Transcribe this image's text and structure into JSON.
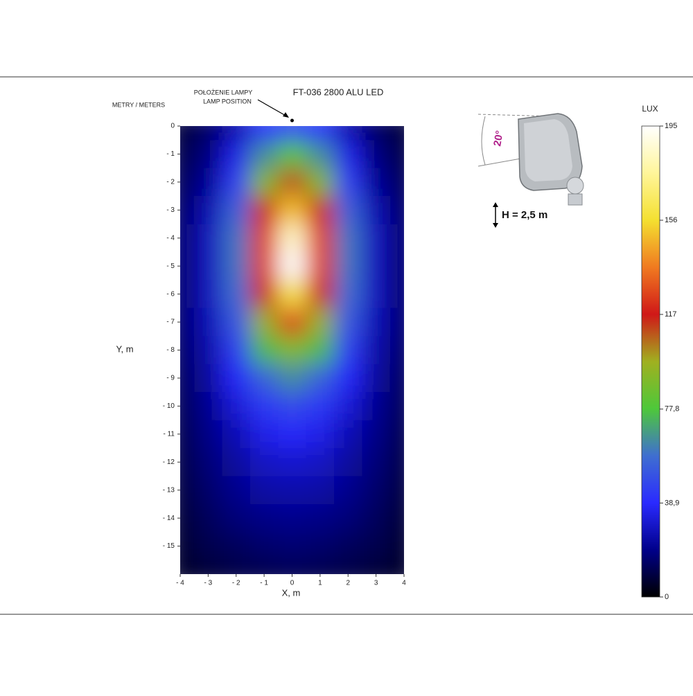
{
  "chart_data": {
    "type": "heatmap",
    "title": "FT-036 2800 ALU LED",
    "y_axis_caption": "METRY / METERS",
    "lamp_label": [
      "POŁOŻENIE LAMPY",
      "LAMP POSITION"
    ],
    "xlabel": "X, m",
    "ylabel": "Y, m",
    "colorbar_label": "LUX",
    "angle_label": "20°",
    "height_label": "H = 2,5 m",
    "lamp_position": [
      0,
      0
    ],
    "x": [
      -4,
      -3,
      -2,
      -1,
      0,
      1,
      2,
      3,
      4
    ],
    "y": [
      0,
      -1,
      -2,
      -3,
      -4,
      -5,
      -6,
      -7,
      -8,
      -9,
      -10,
      -11,
      -12,
      -13,
      -14,
      -15,
      -16
    ],
    "z": [
      [
        8,
        14,
        25,
        40,
        45,
        40,
        25,
        14,
        8
      ],
      [
        10,
        18,
        35,
        65,
        80,
        65,
        35,
        18,
        10
      ],
      [
        12,
        22,
        45,
        90,
        110,
        90,
        45,
        22,
        12
      ],
      [
        14,
        26,
        55,
        115,
        150,
        115,
        55,
        26,
        14
      ],
      [
        15,
        28,
        60,
        125,
        185,
        125,
        60,
        28,
        15
      ],
      [
        15,
        28,
        60,
        125,
        195,
        125,
        60,
        28,
        15
      ],
      [
        15,
        28,
        58,
        115,
        160,
        115,
        58,
        28,
        15
      ],
      [
        15,
        27,
        52,
        95,
        125,
        95,
        52,
        27,
        15
      ],
      [
        14,
        25,
        45,
        75,
        90,
        75,
        45,
        25,
        14
      ],
      [
        13,
        23,
        38,
        55,
        65,
        55,
        38,
        23,
        13
      ],
      [
        12,
        21,
        32,
        43,
        48,
        43,
        32,
        21,
        12
      ],
      [
        11,
        19,
        27,
        35,
        38,
        35,
        27,
        19,
        11
      ],
      [
        10,
        17,
        23,
        29,
        31,
        29,
        23,
        17,
        10
      ],
      [
        9,
        15,
        20,
        24,
        25,
        24,
        20,
        15,
        9
      ],
      [
        8,
        13,
        17,
        19,
        20,
        19,
        17,
        13,
        8
      ],
      [
        7,
        11,
        13,
        15,
        16,
        15,
        13,
        11,
        7
      ],
      [
        6,
        8,
        10,
        11,
        12,
        11,
        10,
        8,
        6
      ]
    ],
    "xlim": [
      -4,
      4
    ],
    "ylim": [
      -16,
      0
    ],
    "xticks": [
      {
        "value": -4,
        "label": "- 4"
      },
      {
        "value": -3,
        "label": "- 3"
      },
      {
        "value": -2,
        "label": "- 2"
      },
      {
        "value": -1,
        "label": "- 1"
      },
      0,
      1,
      2,
      3,
      4
    ],
    "yticks": [
      0,
      {
        "value": -1,
        "label": "- 1"
      },
      {
        "value": -2,
        "label": "- 2"
      },
      {
        "value": -3,
        "label": "- 3"
      },
      {
        "value": -4,
        "label": "- 4"
      },
      {
        "value": -5,
        "label": "- 5"
      },
      {
        "value": -6,
        "label": "- 6"
      },
      {
        "value": -7,
        "label": "- 7"
      },
      {
        "value": -8,
        "label": "- 8"
      },
      {
        "value": -9,
        "label": "- 9"
      },
      {
        "value": -10,
        "label": "- 10"
      },
      {
        "value": -11,
        "label": "- 11"
      },
      {
        "value": -12,
        "label": "- 12"
      },
      {
        "value": -13,
        "label": "- 13"
      },
      {
        "value": -14,
        "label": "- 14"
      },
      {
        "value": -15,
        "label": "- 15"
      }
    ],
    "clim": [
      0,
      195
    ],
    "cticks": [
      0,
      {
        "value": 38.9,
        "label": "38,9"
      },
      {
        "value": 77.8,
        "label": "77,8"
      },
      117,
      156,
      195
    ],
    "colormap": [
      "#000000",
      "#00008a",
      "#2a2aff",
      "#3f6fd0",
      "#4ec83a",
      "#a0b020",
      "#d01818",
      "#f07a20",
      "#f4e030",
      "#fff59a",
      "#ffffff"
    ]
  }
}
